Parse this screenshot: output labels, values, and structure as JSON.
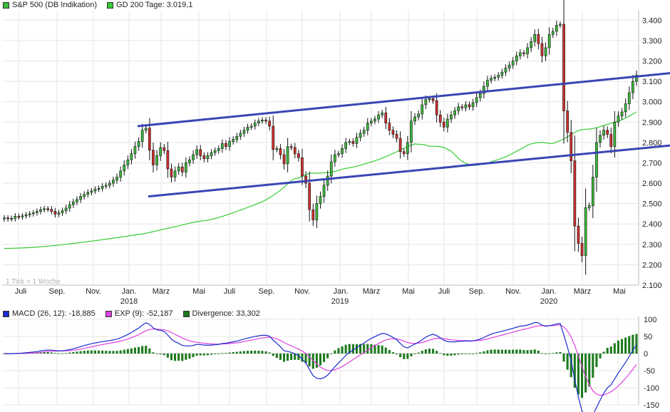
{
  "legend_top": [
    {
      "label": "S&P 500 (DB Indikation)",
      "color": "#3cb83c"
    },
    {
      "label": "GD 200 Tage: 3.019,1",
      "color": "#33cc33"
    }
  ],
  "legend_bottom": [
    {
      "label": "MACD (26, 12): -18,885",
      "color": "#1a2bcc"
    },
    {
      "label": "EXP (9): -52,187",
      "color": "#e040e0"
    },
    {
      "label": "Divergence: 33,302",
      "color": "#1e7a1e"
    }
  ],
  "watermark": "1 Tick = 1 Woche",
  "chart_data": [
    {
      "type": "candlestick",
      "title": "S&P 500 (DB Indikation)",
      "ylim": [
        2100,
        3450
      ],
      "y_ticks": [
        "3.400",
        "3.300",
        "3.200",
        "3.100",
        "3.000",
        "2.900",
        "2.800",
        "2.700",
        "2.600",
        "2.500",
        "2.400",
        "2.300",
        "2.200",
        "2.100"
      ],
      "y_tick_values": [
        3400,
        3300,
        3200,
        3100,
        3000,
        2900,
        2800,
        2700,
        2600,
        2500,
        2400,
        2300,
        2200,
        2100
      ],
      "x_month_labels": [
        "Juli",
        "Sep.",
        "Nov.",
        "Jan.",
        "März",
        "Mai",
        "Juli",
        "Sep.",
        "Nov.",
        "Jan.",
        "März",
        "Mai",
        "Juli",
        "Sep.",
        "Nov.",
        "Jan.",
        "März",
        "Mai"
      ],
      "x_year_labels": [
        "2018",
        "2019",
        "2020"
      ],
      "weekly_close": [
        2430,
        2425,
        2428,
        2438,
        2435,
        2440,
        2445,
        2450,
        2455,
        2462,
        2470,
        2475,
        2472,
        2462,
        2448,
        2455,
        2465,
        2478,
        2495,
        2508,
        2520,
        2535,
        2545,
        2555,
        2562,
        2570,
        2575,
        2585,
        2590,
        2600,
        2615,
        2630,
        2660,
        2690,
        2715,
        2745,
        2780,
        2805,
        2860,
        2870,
        2762,
        2690,
        2735,
        2775,
        2760,
        2670,
        2630,
        2660,
        2680,
        2655,
        2700,
        2715,
        2740,
        2765,
        2735,
        2720,
        2735,
        2750,
        2760,
        2770,
        2795,
        2780,
        2805,
        2815,
        2830,
        2845,
        2860,
        2875,
        2880,
        2895,
        2905,
        2910,
        2905,
        2880,
        2765,
        2770,
        2740,
        2695,
        2780,
        2775,
        2745,
        2725,
        2635,
        2600,
        2470,
        2420,
        2500,
        2535,
        2590,
        2635,
        2705,
        2740,
        2745,
        2770,
        2800,
        2805,
        2795,
        2825,
        2845,
        2860,
        2895,
        2905,
        2915,
        2935,
        2945,
        2895,
        2860,
        2840,
        2820,
        2755,
        2745,
        2800,
        2905,
        2925,
        2940,
        2985,
        3010,
        3015,
        3005,
        2935,
        2900,
        2875,
        2915,
        2935,
        2955,
        2975,
        2970,
        2985,
        2975,
        2995,
        3020,
        3040,
        3075,
        3105,
        3115,
        3120,
        3130,
        3145,
        3165,
        3180,
        3200,
        3225,
        3240,
        3235,
        3265,
        3295,
        3330,
        3285,
        3225,
        3265,
        3330,
        3345,
        3375,
        3380,
        2955,
        2850,
        2710,
        2390,
        2305,
        2245,
        2480,
        2490,
        2630,
        2800,
        2835,
        2860,
        2840,
        2780,
        2900,
        2930,
        2950,
        2990,
        3044,
        3100,
        3130
      ],
      "gd200_note": "200-day moving average line"
    },
    {
      "type": "line",
      "title": "MACD (26, 12)",
      "ylim": [
        -150,
        100
      ],
      "y_ticks": [
        "100",
        "50",
        "0",
        "-50",
        "-100",
        "-150"
      ],
      "y_tick_values": [
        100,
        50,
        0,
        -50,
        -100,
        -150
      ],
      "series": [
        {
          "name": "MACD (26, 12): -18,885"
        },
        {
          "name": "EXP (9): -52,187"
        },
        {
          "name": "Divergence: 33,302"
        }
      ]
    }
  ]
}
